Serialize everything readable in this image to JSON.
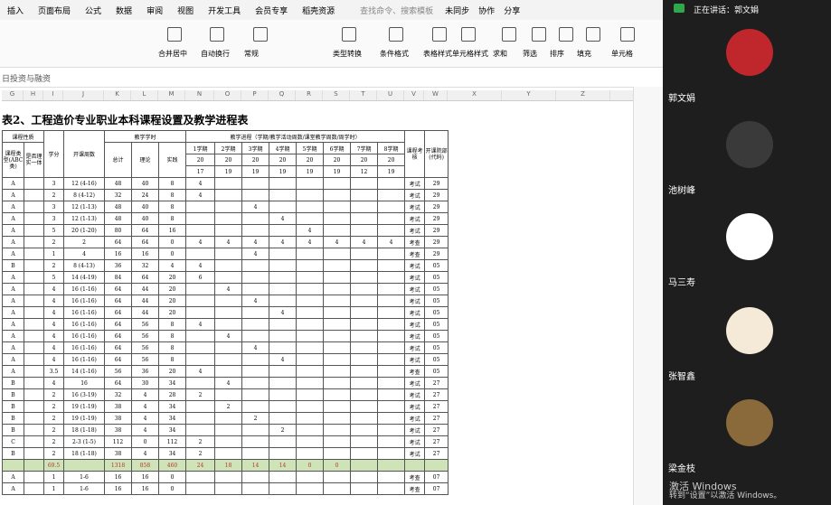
{
  "menu": {
    "tabs": [
      "插入",
      "页面布局",
      "公式",
      "数据",
      "审阅",
      "视图",
      "开发工具",
      "会员专享",
      "稻壳资源"
    ],
    "search": "查找命令、搜索模板",
    "actions": [
      "未同步",
      "协作",
      "分享"
    ]
  },
  "ribbon": {
    "labels": [
      "合并居中",
      "自动换行",
      "常规",
      "类型转换",
      "条件格式",
      "表格样式",
      "单元格样式",
      "求和",
      "筛选",
      "排序",
      "填充",
      "单元格"
    ]
  },
  "formula_bar": "日投资与融资",
  "column_headers": [
    "G",
    "H",
    "I",
    "J",
    "K",
    "L",
    "M",
    "N",
    "O",
    "P",
    "Q",
    "R",
    "S",
    "T",
    "U",
    "V",
    "W",
    "X",
    "Y",
    "Z",
    "AA"
  ],
  "sheet": {
    "title": "表2、工程造价专业职业本科课程设置及教学进程表",
    "header": {
      "nature": "课程性质",
      "credit": "学分",
      "weeks": "开课周数",
      "hours": "教学学时",
      "progress": "教学进程（学期/教学活动周数/课堂教学周数/周学时）",
      "exam": "课程考核",
      "dept": "开课院部(代码)",
      "type": "课程类型(ABC类)",
      "integrated": "是否理实一体",
      "total": "总计",
      "theory": "理论",
      "practice": "实践",
      "semesters": [
        "1学期",
        "2学期",
        "3学期",
        "4学期",
        "5学期",
        "6学期",
        "7学期",
        "8学期"
      ],
      "activity_weeks": [
        20,
        20,
        20,
        20,
        20,
        20,
        20,
        20
      ],
      "class_weeks": [
        17,
        19,
        19,
        19,
        19,
        19,
        12,
        19
      ]
    },
    "rows": [
      [
        "A",
        null,
        3,
        "12 (4-16)",
        48,
        40,
        8,
        4,
        null,
        null,
        null,
        null,
        null,
        null,
        null,
        "考试",
        29
      ],
      [
        "A",
        null,
        2,
        "8 (4-12)",
        32,
        24,
        8,
        4,
        null,
        null,
        null,
        null,
        null,
        null,
        null,
        "考试",
        29
      ],
      [
        "A",
        null,
        3,
        "12 (1-13)",
        48,
        40,
        8,
        null,
        null,
        4,
        null,
        null,
        null,
        null,
        null,
        "考试",
        29
      ],
      [
        "A",
        null,
        3,
        "12 (1-13)",
        48,
        40,
        8,
        null,
        null,
        null,
        4,
        null,
        null,
        null,
        null,
        "考试",
        29
      ],
      [
        "A",
        null,
        5,
        "20 (1-20)",
        80,
        64,
        16,
        null,
        null,
        null,
        null,
        4,
        null,
        null,
        null,
        "考试",
        29
      ],
      [
        "A",
        null,
        2,
        "2",
        64,
        64,
        0,
        4,
        4,
        4,
        4,
        4,
        4,
        4,
        4,
        "考查",
        29
      ],
      [
        "A",
        null,
        1,
        "4",
        16,
        16,
        0,
        null,
        null,
        4,
        null,
        null,
        null,
        null,
        null,
        "考查",
        29
      ],
      [
        "B",
        null,
        2,
        "8 (4-13)",
        36,
        32,
        4,
        4,
        null,
        null,
        null,
        null,
        null,
        null,
        null,
        "考试",
        "05"
      ],
      [
        "A",
        null,
        5,
        "14 (4-19)",
        84,
        64,
        20,
        6,
        null,
        null,
        null,
        null,
        null,
        null,
        null,
        "考试",
        "05"
      ],
      [
        "A",
        null,
        4,
        "16 (1-16)",
        64,
        44,
        20,
        null,
        4,
        null,
        null,
        null,
        null,
        null,
        null,
        "考试",
        "05"
      ],
      [
        "A",
        null,
        4,
        "16 (1-16)",
        64,
        44,
        20,
        null,
        null,
        4,
        null,
        null,
        null,
        null,
        null,
        "考试",
        "05"
      ],
      [
        "A",
        null,
        4,
        "16 (1-16)",
        64,
        44,
        20,
        null,
        null,
        null,
        4,
        null,
        null,
        null,
        null,
        "考试",
        "05"
      ],
      [
        "A",
        null,
        4,
        "16 (1-16)",
        64,
        56,
        8,
        4,
        null,
        null,
        null,
        null,
        null,
        null,
        null,
        "考试",
        "05"
      ],
      [
        "A",
        null,
        4,
        "16 (1-16)",
        64,
        56,
        8,
        null,
        4,
        null,
        null,
        null,
        null,
        null,
        null,
        "考试",
        "05"
      ],
      [
        "A",
        null,
        4,
        "16 (1-16)",
        64,
        56,
        8,
        null,
        null,
        4,
        null,
        null,
        null,
        null,
        null,
        "考试",
        "05"
      ],
      [
        "A",
        null,
        4,
        "16 (1-16)",
        64,
        56,
        8,
        null,
        null,
        null,
        4,
        null,
        null,
        null,
        null,
        "考试",
        "05"
      ],
      [
        "A",
        null,
        3.5,
        "14 (1-16)",
        56,
        36,
        20,
        4,
        null,
        null,
        null,
        null,
        null,
        null,
        null,
        "考查",
        "05"
      ],
      [
        "B",
        null,
        4,
        "16",
        64,
        30,
        34,
        null,
        4,
        null,
        null,
        null,
        null,
        null,
        null,
        "考试",
        27
      ],
      [
        "B",
        null,
        2,
        "16 (3-19)",
        32,
        4,
        28,
        2,
        null,
        null,
        null,
        null,
        null,
        null,
        null,
        "考试",
        27
      ],
      [
        "B",
        null,
        2,
        "19 (1-19)",
        38,
        4,
        34,
        null,
        2,
        null,
        null,
        null,
        null,
        null,
        null,
        "考试",
        27
      ],
      [
        "B",
        null,
        2,
        "19 (1-19)",
        38,
        4,
        34,
        null,
        null,
        2,
        null,
        null,
        null,
        null,
        null,
        "考试",
        27
      ],
      [
        "B",
        null,
        2,
        "18 (1-18)",
        38,
        4,
        34,
        null,
        null,
        null,
        2,
        null,
        null,
        null,
        null,
        "考试",
        27
      ],
      [
        "C",
        null,
        2,
        "2-3 (1-5)",
        112,
        0,
        112,
        2,
        null,
        null,
        null,
        null,
        null,
        null,
        null,
        "考试",
        27
      ],
      [
        "B",
        null,
        2,
        "18 (1-18)",
        38,
        4,
        34,
        2,
        null,
        null,
        null,
        null,
        null,
        null,
        null,
        "考试",
        27
      ]
    ],
    "total_row": [
      null,
      null,
      69.5,
      null,
      1318,
      858,
      460,
      24,
      18,
      14,
      14,
      0,
      0,
      null,
      null,
      null,
      null
    ],
    "rows_after": [
      [
        "A",
        null,
        1,
        "1-6",
        16,
        16,
        0,
        null,
        null,
        null,
        null,
        null,
        null,
        null,
        null,
        "考查",
        "07"
      ],
      [
        "A",
        null,
        1,
        "1-6",
        16,
        16,
        0,
        null,
        null,
        null,
        null,
        null,
        null,
        null,
        null,
        "考查",
        "07"
      ]
    ]
  },
  "video": {
    "speaking": "正在讲话：郭文娟",
    "participants": [
      "郭文娟",
      "池树峰",
      "马三寿",
      "张智鑫",
      "梁金枝"
    ]
  },
  "watermark": {
    "title": "激活 Windows",
    "hint": "转到“设置”以激活 Windows。"
  }
}
